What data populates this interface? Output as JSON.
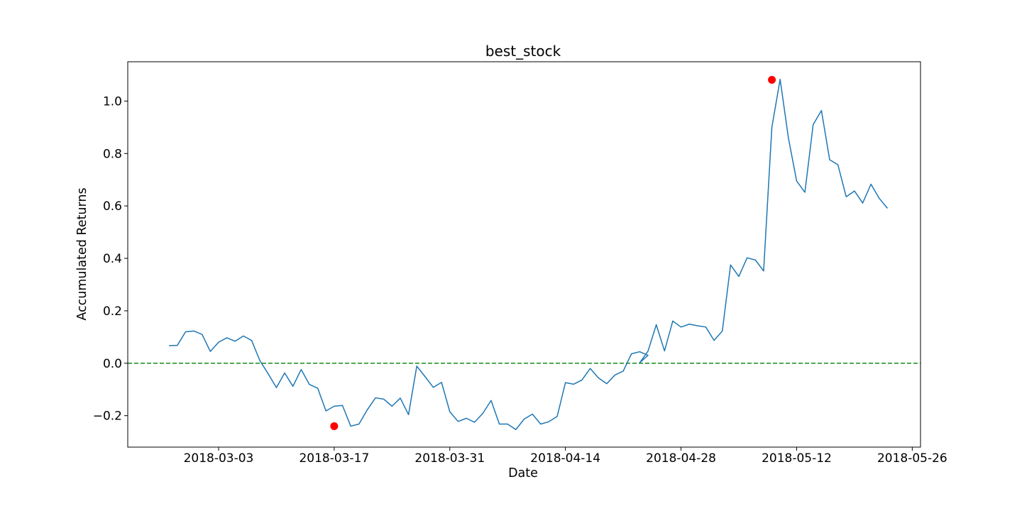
{
  "chart_data": {
    "type": "line",
    "title": "best_stock",
    "xlabel": "Date",
    "ylabel": "Accumulated Returns",
    "x_axis_type": "date",
    "xlim": [
      "2018-02-20",
      "2018-05-27"
    ],
    "ylim": [
      -0.32,
      1.15
    ],
    "x_ticks": [
      "2018-03-03",
      "2018-03-17",
      "2018-03-31",
      "2018-04-14",
      "2018-04-28",
      "2018-05-12",
      "2018-05-26"
    ],
    "y_ticks": [
      -0.2,
      0.0,
      0.2,
      0.4,
      0.6,
      0.8,
      1.0
    ],
    "y_tick_labels": [
      "−0.2",
      "0.0",
      "0.2",
      "0.4",
      "0.6",
      "0.8",
      "1.0"
    ],
    "grid": false,
    "legend": "none",
    "colors": {
      "line": "#1f77b4",
      "reference": "#008000",
      "markers": "#ff0000",
      "axes": "#000000"
    },
    "reference_line": {
      "y": 0.0,
      "style": "dashed"
    },
    "series": [
      {
        "x": [
          "2018-02-25",
          "2018-02-26",
          "2018-02-27",
          "2018-02-28",
          "2018-03-01",
          "2018-03-02",
          "2018-03-03",
          "2018-03-04",
          "2018-03-05",
          "2018-03-06",
          "2018-03-07",
          "2018-03-08",
          "2018-03-09",
          "2018-03-10",
          "2018-03-11",
          "2018-03-12",
          "2018-03-13",
          "2018-03-14",
          "2018-03-15",
          "2018-03-16",
          "2018-03-17",
          "2018-03-18",
          "2018-03-19",
          "2018-03-20",
          "2018-03-21",
          "2018-03-22",
          "2018-03-23",
          "2018-03-24",
          "2018-03-25",
          "2018-03-26",
          "2018-03-27",
          "2018-03-28",
          "2018-03-29",
          "2018-03-30",
          "2018-03-31",
          "2018-04-01",
          "2018-04-02",
          "2018-04-03",
          "2018-04-04",
          "2018-04-05",
          "2018-04-06",
          "2018-04-07",
          "2018-04-08",
          "2018-04-09",
          "2018-04-10",
          "2018-04-11",
          "2018-04-12",
          "2018-04-13",
          "2018-04-14",
          "2018-04-15",
          "2018-04-16",
          "2018-04-17",
          "2018-04-18",
          "2018-04-19",
          "2018-04-20",
          "2018-04-21",
          "2018-04-22",
          "2018-04-23",
          "2018-04-24",
          "2018-04-23",
          "2018-04-24",
          "2018-04-25",
          "2018-04-26",
          "2018-04-27",
          "2018-04-28",
          "2018-04-29",
          "2018-04-30",
          "2018-05-01",
          "2018-05-02",
          "2018-05-03",
          "2018-05-04",
          "2018-05-05",
          "2018-05-06",
          "2018-05-07",
          "2018-05-08",
          "2018-05-09",
          "2018-05-10",
          "2018-05-11",
          "2018-05-12",
          "2018-05-13",
          "2018-05-14",
          "2018-05-15",
          "2018-05-16",
          "2018-05-17",
          "2018-05-18",
          "2018-05-19",
          "2018-05-20",
          "2018-05-21",
          "2018-05-22",
          "2018-05-23"
        ],
        "y": [
          0.067,
          0.068,
          0.12,
          0.123,
          0.11,
          0.045,
          0.08,
          0.097,
          0.084,
          0.104,
          0.087,
          0.01,
          -0.04,
          -0.093,
          -0.037,
          -0.088,
          -0.024,
          -0.081,
          -0.095,
          -0.182,
          -0.164,
          -0.161,
          -0.24,
          -0.232,
          -0.178,
          -0.132,
          -0.137,
          -0.164,
          -0.133,
          -0.196,
          -0.011,
          -0.051,
          -0.092,
          -0.073,
          -0.185,
          -0.222,
          -0.21,
          -0.225,
          -0.191,
          -0.142,
          -0.232,
          -0.232,
          -0.253,
          -0.213,
          -0.194,
          -0.232,
          -0.223,
          -0.203,
          -0.074,
          -0.08,
          -0.064,
          -0.02,
          -0.056,
          -0.078,
          -0.045,
          -0.03,
          0.036,
          0.044,
          0.03,
          0.002,
          0.046,
          0.147,
          0.047,
          0.161,
          0.138,
          0.149,
          0.143,
          0.138,
          0.087,
          0.123,
          0.375,
          0.331,
          0.402,
          0.394,
          0.352,
          0.9,
          1.083,
          0.86,
          0.695,
          0.652,
          0.91,
          0.964,
          0.776,
          0.757,
          0.635,
          0.657,
          0.611,
          0.683,
          0.629,
          0.591
        ]
      }
    ],
    "annotations": [
      {
        "type": "marker",
        "x": "2018-03-17",
        "y": -0.24,
        "color": "#ff0000"
      },
      {
        "type": "marker",
        "x": "2018-05-09",
        "y": 1.081,
        "color": "#ff0000"
      }
    ]
  }
}
